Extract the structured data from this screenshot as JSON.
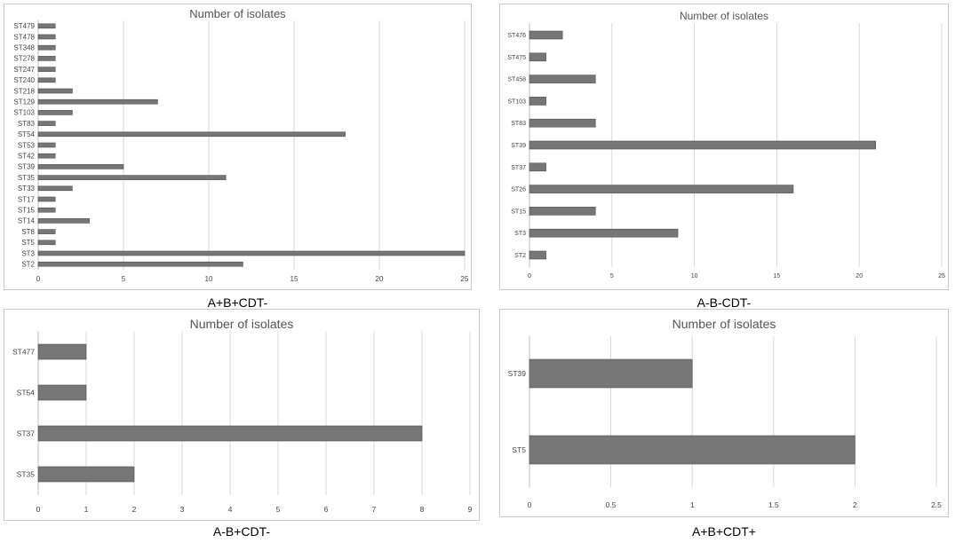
{
  "chart_data": [
    {
      "type": "bar",
      "orientation": "horizontal",
      "title": "Number of isolates",
      "caption": "A+B+CDT-",
      "categories": [
        "ST479",
        "ST478",
        "ST348",
        "ST278",
        "ST247",
        "ST240",
        "ST218",
        "ST129",
        "ST103",
        "ST83",
        "ST54",
        "ST53",
        "ST42",
        "ST39",
        "ST35",
        "ST33",
        "ST17",
        "ST15",
        "ST14",
        "ST8",
        "ST5",
        "ST3",
        "ST2"
      ],
      "values": [
        1,
        1,
        1,
        1,
        1,
        1,
        2,
        7,
        2,
        1,
        18,
        1,
        1,
        5,
        11,
        2,
        1,
        1,
        3,
        1,
        1,
        25,
        12
      ],
      "xlim": [
        0,
        25
      ],
      "xticks": [
        0,
        5,
        10,
        15,
        20,
        25
      ],
      "tick_labels": [
        "0",
        "5",
        "10",
        "15",
        "20",
        "25"
      ],
      "grid": true,
      "bar_color": "#767676"
    },
    {
      "type": "bar",
      "orientation": "horizontal",
      "title": "Number of isolates",
      "caption": "A-B-CDT-",
      "categories": [
        "ST476",
        "ST475",
        "ST458",
        "ST103",
        "ST83",
        "ST39",
        "ST37",
        "ST26",
        "ST15",
        "ST3",
        "ST2"
      ],
      "values": [
        2,
        1,
        4,
        1,
        4,
        21,
        1,
        16,
        4,
        9,
        1
      ],
      "xlim": [
        0,
        25
      ],
      "xticks": [
        0,
        5,
        10,
        15,
        20,
        25
      ],
      "tick_labels": [
        "0",
        "5",
        "10",
        "15",
        "20",
        "25"
      ],
      "grid": true,
      "bar_color": "#767676"
    },
    {
      "type": "bar",
      "orientation": "horizontal",
      "title": "Number of isolates",
      "caption": "A-B+CDT-",
      "categories": [
        "ST477",
        "ST54",
        "ST37",
        "ST35"
      ],
      "values": [
        1,
        1,
        8,
        2
      ],
      "xlim": [
        0,
        9
      ],
      "xticks": [
        0,
        1,
        2,
        3,
        4,
        5,
        6,
        7,
        8,
        9
      ],
      "tick_labels": [
        "0",
        "1",
        "2",
        "3",
        "4",
        "5",
        "6",
        "7",
        "8",
        "9"
      ],
      "grid": true,
      "bar_color": "#767676"
    },
    {
      "type": "bar",
      "orientation": "horizontal",
      "title": "Number of isolates",
      "caption": "A+B+CDT+",
      "categories": [
        "ST39",
        "ST5"
      ],
      "values": [
        1,
        2
      ],
      "xlim": [
        0,
        2.5
      ],
      "xticks": [
        0,
        0.5,
        1,
        1.5,
        2,
        2.5
      ],
      "tick_labels": [
        "0",
        "0.5",
        "1",
        "1.5",
        "2",
        "2.5"
      ],
      "grid": true,
      "bar_color": "#767676"
    }
  ]
}
